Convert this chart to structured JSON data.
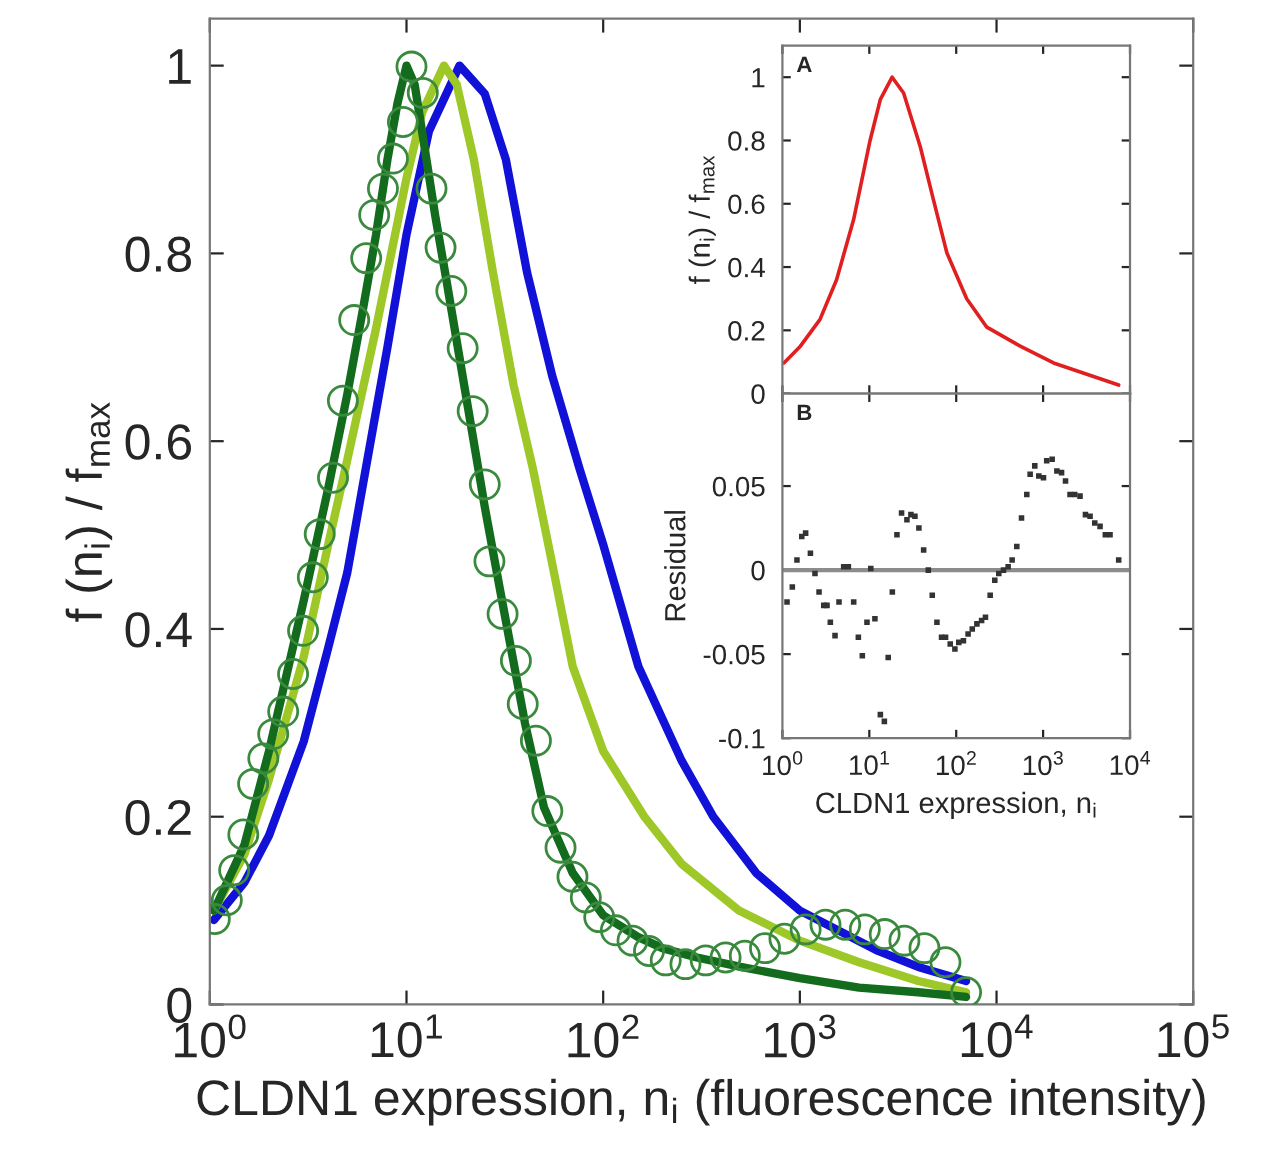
{
  "chart_data": [
    {
      "type": "line",
      "xlabel": "CLDN1 expression, n$_{i}$ (fluorescence intensity)",
      "ylabel": "f (n$_{i}$) / f$_{max}$",
      "log": "x",
      "xlim": [
        1,
        100000
      ],
      "xticks": [
        {
          "value": 1,
          "label": "10$^{0}$"
        },
        {
          "value": 10,
          "label": "10$^{1}$"
        },
        {
          "value": 100,
          "label": "10$^{2}$"
        },
        {
          "value": 1000,
          "label": "10$^{3}$"
        },
        {
          "value": 10000,
          "label": "10$^{4}$"
        },
        {
          "value": 100000,
          "label": "10$^{5}$"
        }
      ],
      "ylim": [
        0,
        1.05
      ],
      "yticks": [
        0,
        0.2,
        0.4,
        0.6,
        0.8,
        1
      ],
      "series": [
        {
          "type": "scatter",
          "marker": "circle",
          "color": "#3a8a3e",
          "x": [
            1.06,
            1.22,
            1.33,
            1.48,
            1.66,
            1.87,
            2.1,
            2.36,
            2.65,
            2.98,
            3.34,
            3.62,
            4.23,
            4.75,
            5.42,
            6.24,
            6.85,
            7.59,
            8.53,
            9.59,
            10.6,
            12.1,
            13.4,
            14.9,
            16.9,
            19.3,
            21.7,
            25,
            26.4,
            30.8,
            36,
            39,
            45.5,
            52,
            60.7,
            69.8,
            81.6,
            95.5,
            116,
            141,
            171,
            208,
            262,
            332,
            419,
            525,
            665,
            835,
            1070,
            1350,
            1700,
            2140,
            2700,
            3400,
            4300,
            5500,
            7000
          ],
          "values": [
            0.091,
            0.111,
            0.143,
            0.181,
            0.235,
            0.262,
            0.288,
            0.312,
            0.352,
            0.398,
            0.455,
            0.501,
            0.561,
            0.643,
            0.729,
            0.795,
            0.841,
            0.869,
            0.901,
            0.94,
            0.999,
            0.971,
            0.869,
            0.806,
            0.76,
            0.699,
            0.632,
            0.554,
            0.472,
            0.416,
            0.366,
            0.32,
            0.281,
            0.206,
            0.167,
            0.136,
            0.114,
            0.093,
            0.079,
            0.068,
            0.057,
            0.047,
            0.043,
            0.047,
            0.05,
            0.052,
            0.06,
            0.07,
            0.08,
            0.085,
            0.085,
            0.08,
            0.075,
            0.068,
            0.06,
            0.045,
            0.013
          ]
        },
        {
          "color": "#1111d8",
          "x": [
            1.05,
            1.5,
            2,
            3,
            4,
            5,
            6.2,
            8,
            10,
            13,
            18.6,
            25,
            32,
            41,
            55,
            76,
            100,
            151,
            250,
            363,
            600,
            1000,
            2500,
            4000,
            7000
          ],
          "values": [
            0.09,
            0.13,
            0.18,
            0.28,
            0.38,
            0.46,
            0.57,
            0.7,
            0.82,
            0.93,
            1,
            0.97,
            0.9,
            0.78,
            0.67,
            0.57,
            0.49,
            0.36,
            0.26,
            0.2,
            0.14,
            0.1,
            0.057,
            0.04,
            0.025
          ]
        },
        {
          "color": "#9dc828",
          "x": [
            1.05,
            1.5,
            2,
            3,
            4,
            5,
            7,
            10,
            12,
            15.5,
            18,
            22,
            27.5,
            35,
            44,
            55,
            70,
            100,
            162,
            250,
            490,
            1000,
            2000,
            4000,
            7000
          ],
          "values": [
            0.1,
            0.16,
            0.24,
            0.37,
            0.49,
            0.58,
            0.72,
            0.88,
            0.95,
            1,
            0.98,
            0.9,
            0.78,
            0.66,
            0.57,
            0.47,
            0.36,
            0.27,
            0.2,
            0.15,
            0.1,
            0.068,
            0.045,
            0.025,
            0.013
          ]
        },
        {
          "color": "#136b1e",
          "x": [
            1.05,
            1.5,
            2,
            3,
            4,
            5,
            6,
            7,
            8,
            9,
            10,
            11,
            12,
            14,
            16,
            20,
            25,
            30,
            40,
            50,
            70,
            100,
            150,
            200,
            300,
            500,
            1000,
            2000,
            4000,
            7000
          ],
          "values": [
            0.1,
            0.17,
            0.27,
            0.43,
            0.55,
            0.65,
            0.74,
            0.82,
            0.9,
            0.96,
            1,
            0.98,
            0.93,
            0.84,
            0.77,
            0.65,
            0.53,
            0.44,
            0.3,
            0.21,
            0.14,
            0.095,
            0.072,
            0.06,
            0.05,
            0.04,
            0.028,
            0.018,
            0.013,
            0.008
          ]
        }
      ]
    },
    {
      "type": "line",
      "ylabel": "f (n$_{i}$) / f$_{max}$",
      "log": "x",
      "tick_labels": "y",
      "annotations": [
        "A"
      ],
      "xlim": [
        1,
        10000
      ],
      "xticks": [
        {
          "value": 1,
          "label": null
        },
        {
          "value": 10,
          "label": null
        },
        {
          "value": 100,
          "label": null
        },
        {
          "value": 1000,
          "label": null
        },
        {
          "value": 10000,
          "label": null
        }
      ],
      "ylim": [
        0,
        1.1
      ],
      "yticks": [
        0,
        0.2,
        0.4,
        0.6,
        0.8,
        1
      ],
      "series": [
        {
          "color": "#e02020",
          "x": [
            1.04,
            1.61,
            2.7,
            4.2,
            6.6,
            10.2,
            13.4,
            18.3,
            24.8,
            38.6,
            55,
            78,
            132,
            225,
            545,
            1320,
            7400
          ],
          "values": [
            0.097,
            0.15,
            0.234,
            0.36,
            0.55,
            0.8,
            0.93,
            1,
            0.95,
            0.78,
            0.61,
            0.445,
            0.3,
            0.21,
            0.15,
            0.097,
            0.027
          ]
        }
      ]
    },
    {
      "type": "scatter",
      "xlabel": "CLDN1 expression, n$_{i}$",
      "ylabel": "Residual",
      "log": "x",
      "annotations": [
        "B"
      ],
      "xlim": [
        1,
        10000
      ],
      "xticks": [
        {
          "value": 1,
          "label": "10$^{0}$"
        },
        {
          "value": 10,
          "label": "10$^{1}$"
        },
        {
          "value": 100,
          "label": "10$^{2}$"
        },
        {
          "value": 1000,
          "label": "10$^{3}$"
        },
        {
          "value": 10000,
          "label": "10$^{4}$"
        }
      ],
      "ylim": [
        -0.1,
        0.105
      ],
      "yticks": [
        {
          "value": -0.1,
          "label": "-0.1"
        },
        {
          "value": -0.05,
          "label": "-0.05"
        },
        0,
        0.05
      ],
      "ref_lines": [
        {
          "axis": "y",
          "value": 0,
          "color": "#8c8c8c"
        }
      ],
      "series": [
        {
          "marker": "square",
          "color": "#333333",
          "x": [
            1.13,
            1.3,
            1.47,
            1.67,
            1.85,
            2.1,
            2.37,
            2.64,
            2.99,
            3.26,
            3.56,
            4.03,
            4.48,
            5.07,
            5.74,
            6.61,
            7.48,
            8.31,
            9.4,
            10.4,
            11.6,
            13.4,
            14.9,
            16.5,
            18.4,
            20.8,
            23.5,
            27.1,
            30.1,
            33.5,
            37.2,
            42.2,
            47.7,
            53,
            60,
            67.8,
            75.4,
            85.3,
            96.6,
            107,
            121,
            137,
            153,
            173,
            196,
            217,
            246,
            278,
            309,
            350,
            396,
            440,
            498,
            564,
            649,
            709,
            802,
            892,
            1010,
            1100,
            1270,
            1440,
            1630,
            1810,
            2040,
            2310,
            2660,
            3070,
            3470,
            3930,
            4520,
            5200,
            5890,
            7410
          ],
          "values": [
            -0.019,
            -0.01,
            0.006,
            0.02,
            0.022,
            0.01,
            -0.002,
            -0.013,
            -0.021,
            -0.021,
            -0.031,
            -0.039,
            -0.019,
            0.002,
            0.002,
            -0.019,
            -0.04,
            -0.051,
            -0.031,
            0.001,
            -0.029,
            -0.086,
            -0.09,
            -0.052,
            -0.013,
            0.021,
            0.034,
            0.03,
            0.033,
            0.032,
            0.025,
            0.012,
            0,
            -0.015,
            -0.031,
            -0.04,
            -0.04,
            -0.044,
            -0.047,
            -0.043,
            -0.042,
            -0.038,
            -0.035,
            -0.032,
            -0.03,
            -0.028,
            -0.015,
            -0.006,
            -0.002,
            0,
            0.002,
            0.006,
            0.014,
            0.031,
            0.045,
            0.057,
            0.062,
            0.056,
            0.055,
            0.065,
            0.066,
            0.059,
            0.058,
            0.053,
            0.045,
            0.045,
            0.044,
            0.033,
            0.032,
            0.028,
            0.026,
            0.021,
            0.021,
            0.006
          ]
        }
      ]
    }
  ]
}
